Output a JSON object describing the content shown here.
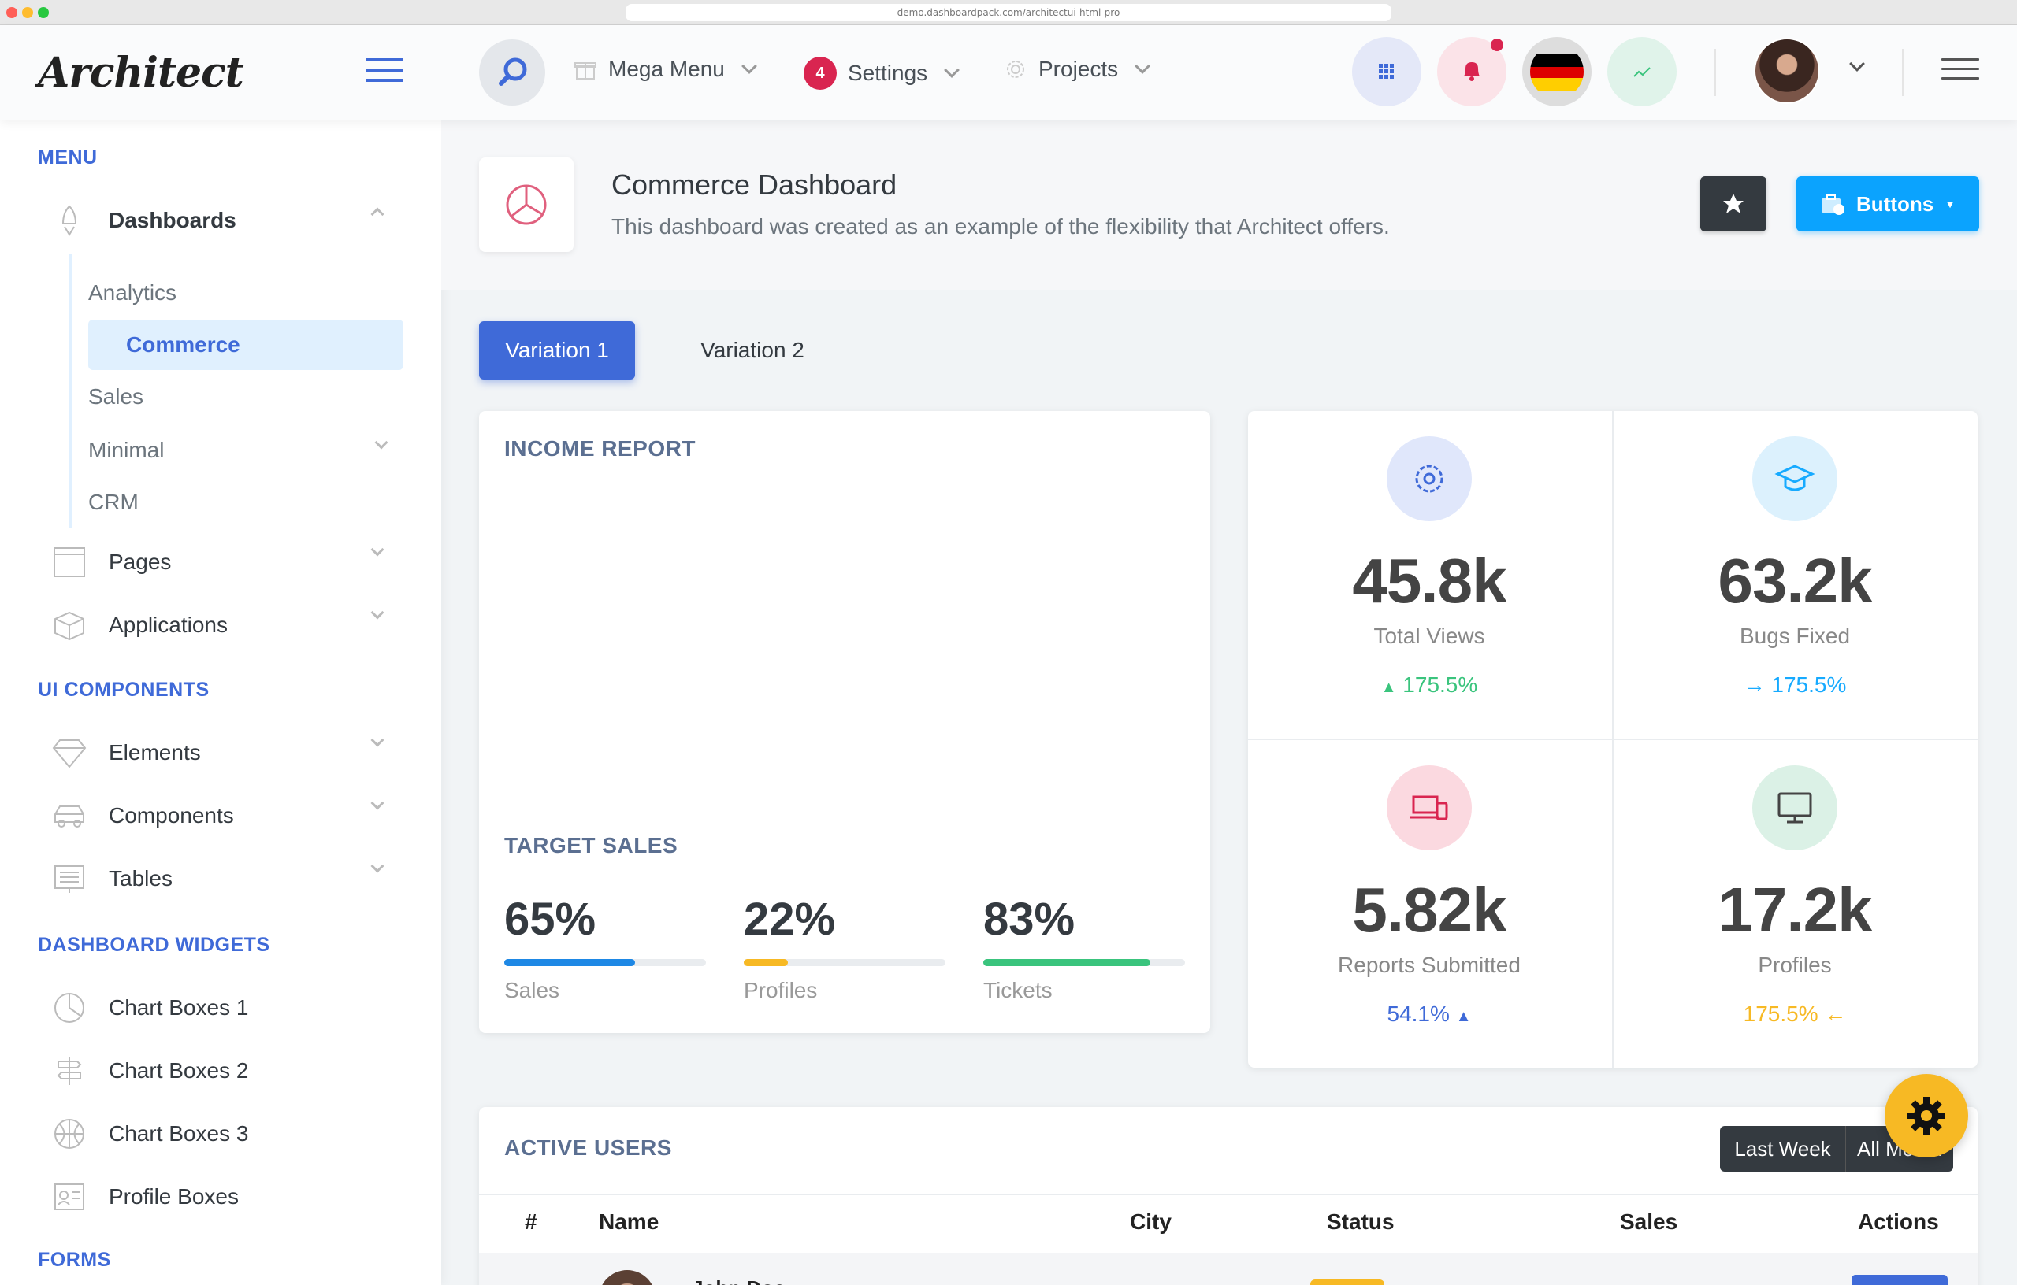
{
  "browser": {
    "url": "demo.dashboardpack.com/architectui-html-pro"
  },
  "header": {
    "logo": "Architect",
    "mega_menu": "Mega Menu",
    "settings": "Settings",
    "settings_badge": "4",
    "projects": "Projects",
    "icons": [
      "search-icon",
      "grid-icon",
      "bell-icon",
      "germany-flag-icon",
      "trending-up-icon",
      "user-avatar",
      "menu-icon"
    ]
  },
  "sidebar": {
    "menu_heading": "MENU",
    "dashboards": "Dashboards",
    "dash_sub": [
      "Analytics",
      "Commerce",
      "Sales",
      "Minimal",
      "CRM"
    ],
    "pages": "Pages",
    "applications": "Applications",
    "ui_heading": "UI COMPONENTS",
    "elements": "Elements",
    "components": "Components",
    "tables": "Tables",
    "widgets_heading": "DASHBOARD WIDGETS",
    "chart_boxes_1": "Chart Boxes 1",
    "chart_boxes_2": "Chart Boxes 2",
    "chart_boxes_3": "Chart Boxes 3",
    "profile_boxes": "Profile Boxes",
    "forms_heading": "FORMS"
  },
  "page": {
    "title": "Commerce Dashboard",
    "subtitle": "This dashboard was created as an example of the flexibility that Architect offers.",
    "buttons_label": "Buttons"
  },
  "tabs": [
    "Variation 1",
    "Variation 2"
  ],
  "income": {
    "title": "INCOME REPORT",
    "target_title": "TARGET SALES",
    "targets": [
      {
        "pct": "65%",
        "label": "Sales",
        "value": 0.65,
        "color": "#1e88e5"
      },
      {
        "pct": "22%",
        "label": "Profiles",
        "value": 0.22,
        "color": "#f7b924"
      },
      {
        "pct": "83%",
        "label": "Tickets",
        "value": 0.83,
        "color": "#3ac47d"
      }
    ]
  },
  "stats": [
    {
      "value": "45.8k",
      "label": "Total Views",
      "trend": "175.5%",
      "trend_color": "#3ac47d",
      "icon": "gear-icon",
      "icon_bg": "#e0e7fb",
      "icon_color": "#3f6ad8"
    },
    {
      "value": "63.2k",
      "label": "Bugs Fixed",
      "trend": "175.5%",
      "trend_color": "#16aaff",
      "icon": "graduation-cap-icon",
      "icon_bg": "#dcf1fd",
      "icon_color": "#16aaff"
    },
    {
      "value": "5.82k",
      "label": "Reports Submitted",
      "trend": "54.1%",
      "trend_color": "#3f6ad8",
      "icon": "laptop-phone-icon",
      "icon_bg": "#fbd9e0",
      "icon_color": "#d92550"
    },
    {
      "value": "17.2k",
      "label": "Profiles",
      "trend": "175.5%",
      "trend_color": "#f7b924",
      "icon": "monitor-icon",
      "icon_bg": "#dbf1e6",
      "icon_color": "#444"
    }
  ],
  "active_users": {
    "title": "ACTIVE USERS",
    "btn_last_week": "Last Week",
    "btn_all": "All Month",
    "columns": [
      "#",
      "Name",
      "City",
      "Status",
      "Sales",
      "Actions"
    ],
    "first_row_name": "John Doe"
  }
}
